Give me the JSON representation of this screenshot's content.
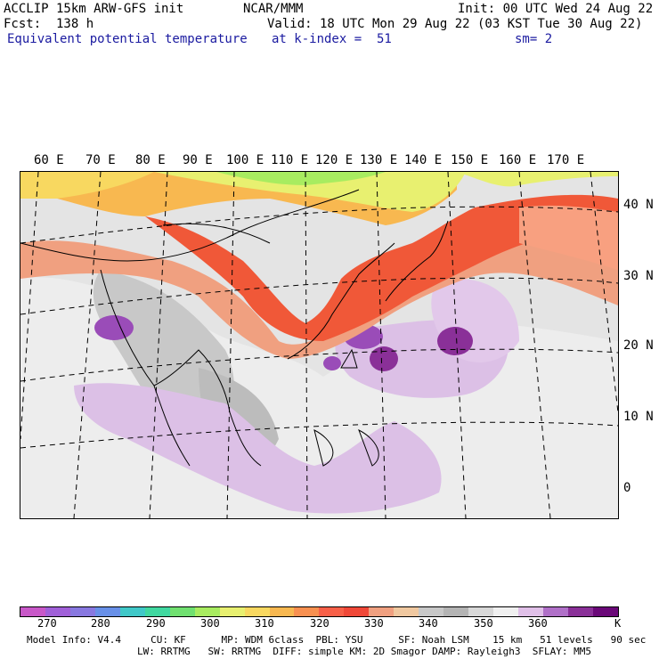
{
  "header": {
    "model_title": "ACCLIP 15km ARW-GFS init",
    "forecast": "Fcst:  138 h",
    "variable": "Equivalent potential temperature",
    "org": "NCAR/MMM",
    "valid": "Valid: 18 UTC Mon 29 Aug 22 (03 KST Tue 30 Aug 22)",
    "level": "at k-index =  51",
    "init": "Init: 00 UTC Wed 24 Aug 22",
    "smoothing": "sm= 2"
  },
  "map": {
    "lon_labels": [
      "60 E",
      "70 E",
      "80 E",
      "90 E",
      "100 E",
      "110 E",
      "120 E",
      "130 E",
      "140 E",
      "150 E",
      "160 E",
      "170 E"
    ],
    "lat_labels": [
      "40 N",
      "30 N",
      "20 N",
      "10 N",
      "0"
    ]
  },
  "colorbar": {
    "colors": [
      "#c858c8",
      "#a060d8",
      "#8878e0",
      "#6890e8",
      "#40c8c8",
      "#40d8a0",
      "#70e070",
      "#a8ec60",
      "#e8f070",
      "#f8d860",
      "#f8b850",
      "#f89050",
      "#f86048",
      "#f04838",
      "#f0a080",
      "#f0c8a0",
      "#c8c8c8",
      "#b4b4b4",
      "#d8d8d8",
      "#f0f0f0",
      "#e0c0e8",
      "#b070c8",
      "#8a3098",
      "#6a0878"
    ],
    "labels": [
      "270",
      "280",
      "290",
      "300",
      "310",
      "320",
      "330",
      "340",
      "350",
      "360",
      "K"
    ],
    "unit": "K"
  },
  "footer": {
    "line1": "Model Info: V4.4     CU: KF      MP: WDM 6class  PBL: YSU      SF: Noah LSM    15 km   51 levels   90 sec",
    "line2": "LW: RRTMG   SW: RRTMG  DIFF: simple KM: 2D Smagor DAMP: Rayleigh3  SFLAY: MM5"
  }
}
